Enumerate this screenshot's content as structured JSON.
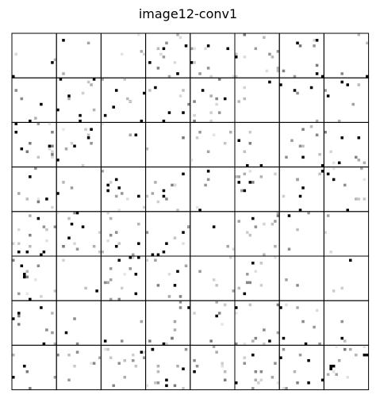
{
  "title": "image12-conv1",
  "grid": {
    "rows": 8,
    "cols": 8
  },
  "colors": {
    "background": "#ffffff",
    "border": "#000000",
    "activation": "#000000"
  },
  "seed": 12
}
